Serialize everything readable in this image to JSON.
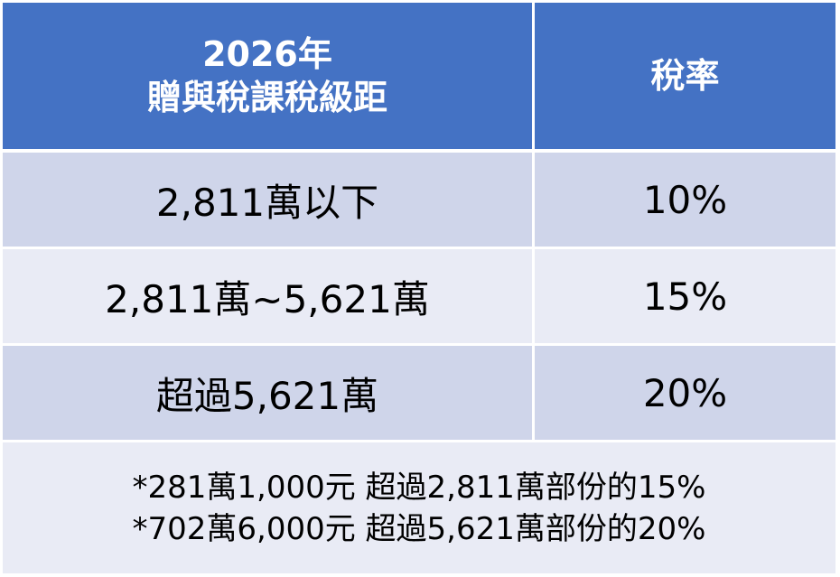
{
  "table": {
    "header": [
      [
        "2026年",
        "贈與稅課稅級距"
      ],
      "稅率"
    ],
    "rows": [
      [
        "2,811萬以下",
        "10%"
      ],
      [
        "2,811萬~5,621萬",
        "15%"
      ],
      [
        "超過5,621萬",
        "20%"
      ]
    ],
    "notes": [
      "*281萬1,000元 超過2,811萬部份的15%",
      "*702萬6,000元 超過5,621萬部份的20%"
    ]
  }
}
